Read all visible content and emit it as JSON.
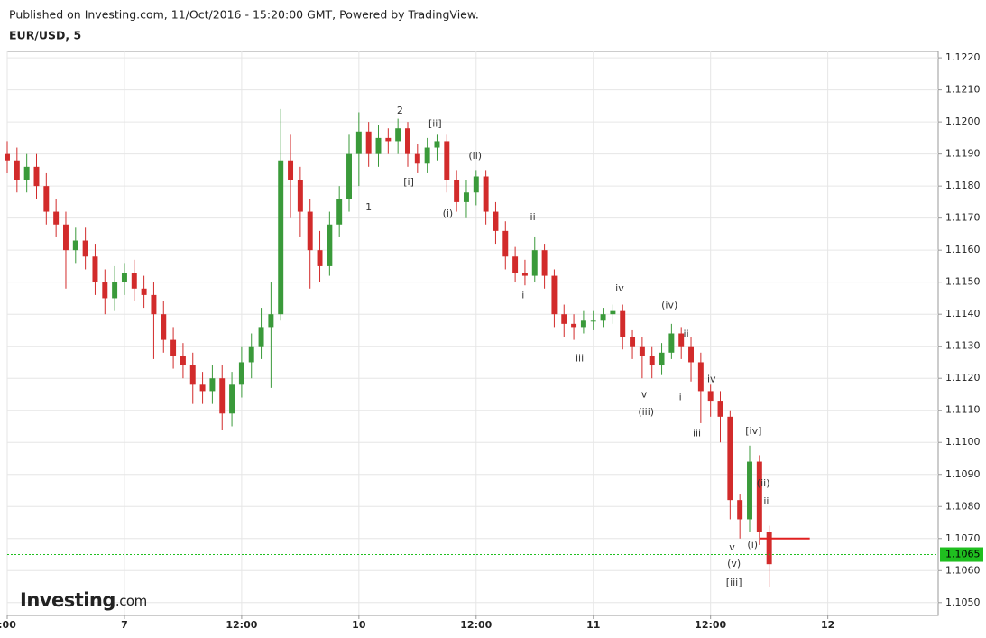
{
  "header": {
    "published": "Published on Investing.com, 11/Oct/2016 - 15:20:00 GMT, Powered by TradingView.",
    "logo": "Investing",
    "logo_suffix": ".com"
  },
  "chart_data": {
    "type": "candlestick",
    "title": "EUR/USD, 5",
    "x": [
      0,
      1,
      2,
      3,
      4,
      5,
      6,
      7,
      8,
      9,
      10,
      11,
      12,
      13,
      14,
      15,
      16,
      17,
      18,
      19,
      20,
      21,
      22,
      23,
      24,
      25,
      26,
      27,
      28,
      29,
      30,
      31,
      32,
      33,
      34,
      35,
      36,
      37,
      38,
      39,
      40,
      41,
      42,
      43,
      44,
      45,
      46,
      47,
      48,
      49,
      50,
      51,
      52,
      53,
      54,
      55,
      56,
      57,
      58,
      59,
      60,
      61,
      62,
      63,
      64,
      65,
      66,
      67,
      68,
      69,
      70,
      71,
      72,
      73,
      74,
      75,
      76,
      77,
      78
    ],
    "open": [
      1.119,
      1.1188,
      1.1182,
      1.1186,
      1.118,
      1.1172,
      1.1168,
      1.116,
      1.1163,
      1.1158,
      1.115,
      1.1145,
      1.115,
      1.1153,
      1.1148,
      1.1146,
      1.114,
      1.1132,
      1.1127,
      1.1124,
      1.1118,
      1.1116,
      1.112,
      1.1109,
      1.1118,
      1.1125,
      1.113,
      1.1136,
      1.114,
      1.1188,
      1.1182,
      1.1172,
      1.116,
      1.1155,
      1.1168,
      1.1176,
      1.119,
      1.1197,
      1.119,
      1.1195,
      1.1194,
      1.1198,
      1.119,
      1.1187,
      1.1192,
      1.1194,
      1.1182,
      1.1175,
      1.1178,
      1.1183,
      1.1172,
      1.1166,
      1.1158,
      1.1153,
      1.1152,
      1.116,
      1.1152,
      1.114,
      1.1137,
      1.1136,
      1.1138,
      1.1138,
      1.114,
      1.1141,
      1.1133,
      1.113,
      1.1127,
      1.1124,
      1.1128,
      1.1134,
      1.113,
      1.1125,
      1.1116,
      1.1113,
      1.1108,
      1.1082,
      1.1076,
      1.1094,
      1.1072
    ],
    "high": [
      1.1194,
      1.1192,
      1.119,
      1.119,
      1.1184,
      1.1176,
      1.1172,
      1.1167,
      1.1167,
      1.1162,
      1.1154,
      1.1155,
      1.1156,
      1.1157,
      1.1152,
      1.115,
      1.1144,
      1.1136,
      1.1131,
      1.1128,
      1.1122,
      1.1124,
      1.1124,
      1.1122,
      1.113,
      1.1134,
      1.1142,
      1.115,
      1.1204,
      1.1196,
      1.1186,
      1.1176,
      1.1166,
      1.1172,
      1.118,
      1.1196,
      1.1203,
      1.12,
      1.1199,
      1.1198,
      1.1201,
      1.12,
      1.1193,
      1.1195,
      1.1196,
      1.1196,
      1.1185,
      1.1182,
      1.1185,
      1.1185,
      1.1175,
      1.1169,
      1.1161,
      1.1157,
      1.1164,
      1.1162,
      1.1154,
      1.1143,
      1.114,
      1.1141,
      1.1141,
      1.1142,
      1.1143,
      1.1143,
      1.1135,
      1.1133,
      1.113,
      1.1131,
      1.1137,
      1.1136,
      1.1133,
      1.1128,
      1.1118,
      1.1116,
      1.111,
      1.1084,
      1.1099,
      1.1096,
      1.1074
    ],
    "low": [
      1.1184,
      1.1178,
      1.1178,
      1.1176,
      1.1168,
      1.1164,
      1.1148,
      1.1156,
      1.1154,
      1.1146,
      1.114,
      1.1141,
      1.1146,
      1.1144,
      1.1142,
      1.1126,
      1.1128,
      1.1123,
      1.112,
      1.1112,
      1.1112,
      1.1112,
      1.1104,
      1.1105,
      1.1114,
      1.112,
      1.1126,
      1.1117,
      1.1138,
      1.117,
      1.1164,
      1.1148,
      1.115,
      1.1152,
      1.1164,
      1.1172,
      1.118,
      1.1186,
      1.1186,
      1.119,
      1.119,
      1.1186,
      1.1184,
      1.1184,
      1.1188,
      1.1178,
      1.1172,
      1.117,
      1.1174,
      1.1168,
      1.1162,
      1.1154,
      1.115,
      1.1149,
      1.115,
      1.1148,
      1.1136,
      1.1133,
      1.1132,
      1.1134,
      1.1135,
      1.1136,
      1.1137,
      1.1129,
      1.1126,
      1.112,
      1.112,
      1.1121,
      1.1126,
      1.1126,
      1.1119,
      1.1106,
      1.1108,
      1.11,
      1.1076,
      1.107,
      1.1072,
      1.1068,
      1.1055
    ],
    "close": [
      1.1188,
      1.1182,
      1.1186,
      1.118,
      1.1172,
      1.1168,
      1.116,
      1.1163,
      1.1158,
      1.115,
      1.1145,
      1.115,
      1.1153,
      1.1148,
      1.1146,
      1.114,
      1.1132,
      1.1127,
      1.1124,
      1.1118,
      1.1116,
      1.112,
      1.1109,
      1.1118,
      1.1125,
      1.113,
      1.1136,
      1.114,
      1.1188,
      1.1182,
      1.1172,
      1.116,
      1.1155,
      1.1168,
      1.1176,
      1.119,
      1.1197,
      1.119,
      1.1195,
      1.1194,
      1.1198,
      1.119,
      1.1187,
      1.1192,
      1.1194,
      1.1182,
      1.1175,
      1.1178,
      1.1183,
      1.1172,
      1.1166,
      1.1158,
      1.1153,
      1.1152,
      1.116,
      1.1152,
      1.114,
      1.1137,
      1.1136,
      1.1138,
      1.1138,
      1.114,
      1.1141,
      1.1133,
      1.113,
      1.1127,
      1.1124,
      1.1128,
      1.1134,
      1.113,
      1.1125,
      1.1116,
      1.1113,
      1.1108,
      1.1082,
      1.1076,
      1.1094,
      1.1072,
      1.1062
    ],
    "up_color": "#3a9a3a",
    "down_color": "#d22b2b",
    "xlim": [
      0,
      95.3
    ],
    "xticks": [
      {
        "value": 0,
        "label": ":00"
      },
      {
        "value": 12,
        "label": "7"
      },
      {
        "value": 24,
        "label": "12:00"
      },
      {
        "value": 36,
        "label": "10"
      },
      {
        "value": 48,
        "label": "12:00"
      },
      {
        "value": 60,
        "label": "11"
      },
      {
        "value": 72,
        "label": "12:00"
      },
      {
        "value": 84,
        "label": "12"
      }
    ],
    "ylim": [
      1.1046,
      1.1222
    ],
    "yticks": [
      {
        "value": 1.105,
        "label": "1.1050"
      },
      {
        "value": 1.106,
        "label": "1.1060"
      },
      {
        "value": 1.107,
        "label": "1.1070"
      },
      {
        "value": 1.108,
        "label": "1.1080"
      },
      {
        "value": 1.109,
        "label": "1.1090"
      },
      {
        "value": 1.11,
        "label": "1.1100"
      },
      {
        "value": 1.111,
        "label": "1.1110"
      },
      {
        "value": 1.112,
        "label": "1.1120"
      },
      {
        "value": 1.113,
        "label": "1.1130"
      },
      {
        "value": 1.114,
        "label": "1.1140"
      },
      {
        "value": 1.115,
        "label": "1.1150"
      },
      {
        "value": 1.116,
        "label": "1.1160"
      },
      {
        "value": 1.117,
        "label": "1.1170"
      },
      {
        "value": 1.118,
        "label": "1.1180"
      },
      {
        "value": 1.119,
        "label": "1.1190"
      },
      {
        "value": 1.12,
        "label": "1.1200"
      },
      {
        "value": 1.121,
        "label": "1.1210"
      },
      {
        "value": 1.122,
        "label": "1.1220"
      }
    ],
    "grid": true,
    "last_price": 1.1065,
    "last_price_color": "#1fbf1f",
    "level_line": 1.107,
    "level_line_color": "#e02020",
    "annotations": [
      {
        "text": "1",
        "x": 37.0,
        "y": 1.11733
      },
      {
        "text": "2",
        "x": 40.2,
        "y": 1.12034
      },
      {
        "text": "[ii]",
        "x": 43.8,
        "y": 1.11994
      },
      {
        "text": "[i]",
        "x": 41.1,
        "y": 1.11812
      },
      {
        "text": "(ii)",
        "x": 47.9,
        "y": 1.11893
      },
      {
        "text": "(i)",
        "x": 45.1,
        "y": 1.11713
      },
      {
        "text": "ii",
        "x": 53.8,
        "y": 1.11702
      },
      {
        "text": "i",
        "x": 52.8,
        "y": 1.11458
      },
      {
        "text": "iv",
        "x": 62.7,
        "y": 1.1148
      },
      {
        "text": "iii",
        "x": 58.6,
        "y": 1.11261
      },
      {
        "text": "(iv)",
        "x": 67.8,
        "y": 1.11427
      },
      {
        "text": "ii",
        "x": 69.5,
        "y": 1.11337
      },
      {
        "text": "v",
        "x": 65.2,
        "y": 1.11149
      },
      {
        "text": "(iii)",
        "x": 65.4,
        "y": 1.11093
      },
      {
        "text": "i",
        "x": 68.9,
        "y": 1.1114
      },
      {
        "text": "iv",
        "x": 72.1,
        "y": 1.11197
      },
      {
        "text": "iii",
        "x": 70.6,
        "y": 1.11028
      },
      {
        "text": "[iv]",
        "x": 76.4,
        "y": 1.11034
      },
      {
        "text": "(ii)",
        "x": 77.4,
        "y": 1.10871
      },
      {
        "text": "ii",
        "x": 77.7,
        "y": 1.10815
      },
      {
        "text": "v",
        "x": 74.2,
        "y": 1.10671
      },
      {
        "text": "(i)",
        "x": 76.3,
        "y": 1.1068
      },
      {
        "text": "(v)",
        "x": 74.4,
        "y": 1.10621
      },
      {
        "text": "[iii]",
        "x": 74.4,
        "y": 1.10562
      }
    ]
  }
}
